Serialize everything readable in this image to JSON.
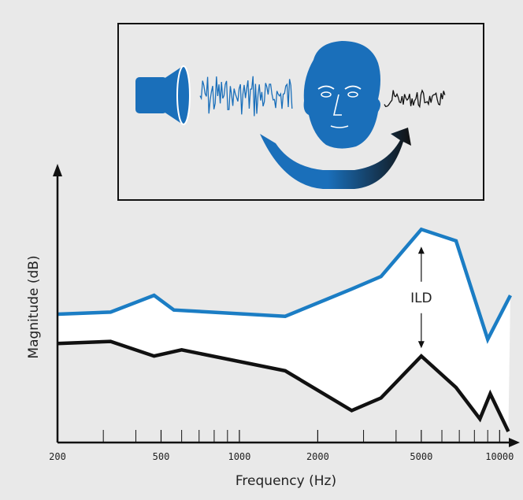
{
  "colors": {
    "background_panel": "#e9e9e9",
    "band_fill": "#ffffff",
    "series_upper": "#1b7dc4",
    "series_lower": "#111111",
    "illustration_blue": "#1a6fba",
    "axis": "#111111"
  },
  "illustration": {
    "elements": [
      "loudspeaker-icon",
      "noise-waveform-source",
      "listener-head-icon",
      "noise-waveform-received",
      "head-shadow-arrow"
    ]
  },
  "chart_data": {
    "type": "line",
    "xscale": "log",
    "xlim": [
      200,
      11000
    ],
    "ylim": [
      0,
      100
    ],
    "xlabel": "Frequency (Hz)",
    "ylabel": "Magnitude (dB)",
    "title": "",
    "grid": false,
    "tick_labels": [
      "200",
      "500",
      "1000",
      "2000",
      "5000",
      "10000"
    ],
    "tick_values": [
      200,
      500,
      1000,
      2000,
      5000,
      10000
    ],
    "minor_ticks": [
      300,
      400,
      600,
      700,
      800,
      900,
      3000,
      4000,
      6000,
      7000,
      8000,
      9000
    ],
    "fill_between_series": true,
    "annotations": [
      {
        "text": "ILD",
        "x": 5000,
        "y_top": 96.5,
        "y_bottom": 36.0
      }
    ],
    "series": [
      {
        "color": "#1b7dc4",
        "points": [
          [
            200,
            56
          ],
          [
            320,
            57
          ],
          [
            470,
            65
          ],
          [
            560,
            58
          ],
          [
            1500,
            55
          ],
          [
            2700,
            68
          ],
          [
            3500,
            74
          ],
          [
            5000,
            96.5
          ],
          [
            6800,
            91
          ],
          [
            9000,
            44
          ],
          [
            11000,
            65
          ]
        ]
      },
      {
        "color": "#111111",
        "points": [
          [
            200,
            42
          ],
          [
            320,
            43
          ],
          [
            470,
            36
          ],
          [
            600,
            39
          ],
          [
            1500,
            29
          ],
          [
            2700,
            10
          ],
          [
            3500,
            16
          ],
          [
            5000,
            36
          ],
          [
            6800,
            21
          ],
          [
            8400,
            6
          ],
          [
            9200,
            18
          ],
          [
            10800,
            0
          ]
        ]
      }
    ]
  }
}
